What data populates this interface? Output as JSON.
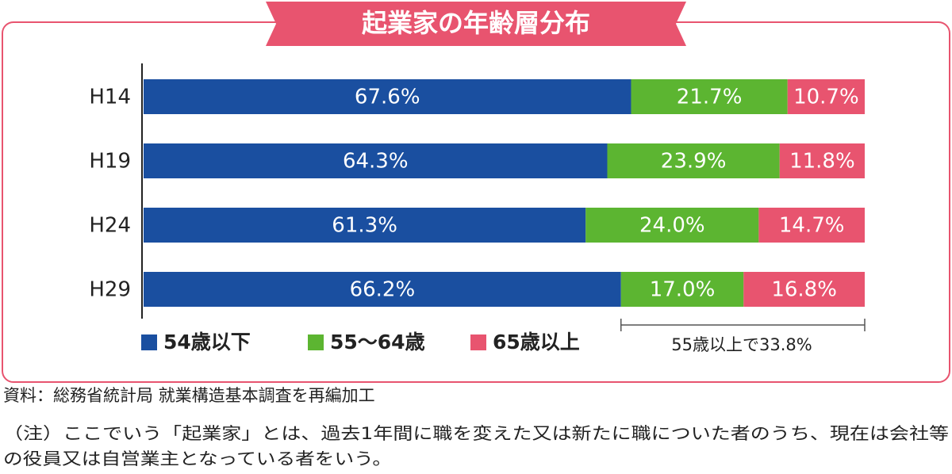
{
  "chart_data": {
    "type": "stacked-bar-horizontal",
    "title": "起業家の年齢層分布",
    "categories": [
      "H14",
      "H19",
      "H24",
      "H29"
    ],
    "series": [
      {
        "name": "54歳以下",
        "color": "#1a4fa0",
        "values": [
          67.6,
          64.3,
          61.3,
          66.2
        ],
        "value_labels": [
          "67.6%",
          "64.3%",
          "61.3%",
          "66.2%"
        ]
      },
      {
        "name": "55～64歳",
        "color": "#5cb531",
        "values": [
          21.7,
          23.9,
          24.0,
          17.0
        ],
        "value_labels": [
          "21.7%",
          "23.9%",
          "24.0%",
          "17.0%"
        ]
      },
      {
        "name": "65歳以上",
        "color": "#e8546f",
        "values": [
          10.7,
          11.8,
          14.7,
          16.8
        ],
        "value_labels": [
          "10.7%",
          "11.8%",
          "14.7%",
          "16.8%"
        ]
      }
    ],
    "xlim": [
      0,
      100
    ],
    "annotation": "55歳以上で33.8%",
    "source": "資料：総務省統計局 就業構造基本調査を再編加工",
    "note": [
      "（注）ここでいう「起業家」とは、過去1年間に職を変えた又は新たに職についた者のうち、現在は会社等",
      "の役員又は自営業主となっている者をいう。"
    ]
  }
}
